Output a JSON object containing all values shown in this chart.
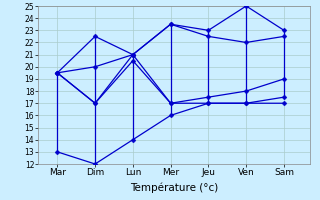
{
  "title": "",
  "xlabel": "Température (°c)",
  "background_color": "#cceeff",
  "grid_color": "#aacccc",
  "line_color": "#0000cc",
  "days": [
    "Mar",
    "Dim",
    "Lun",
    "Mer",
    "Jeu",
    "Ven",
    "Sam"
  ],
  "ylim": [
    12,
    25
  ],
  "yticks": [
    12,
    13,
    14,
    15,
    16,
    17,
    18,
    19,
    20,
    21,
    22,
    23,
    24,
    25
  ],
  "day_positions": [
    0,
    1,
    2,
    3,
    4,
    5,
    6
  ],
  "mins": [
    13,
    12,
    14,
    16,
    17,
    17,
    17.5
  ],
  "maxs": [
    19.5,
    22.5,
    21,
    23.5,
    23,
    25,
    23
  ],
  "mid1": [
    19.5,
    17,
    20.5,
    17,
    17,
    17,
    17
  ],
  "mid2": [
    19.5,
    20,
    21,
    17,
    17.5,
    18,
    19
  ],
  "mid3": [
    19.5,
    17,
    21,
    23.5,
    22.5,
    22,
    22.5
  ]
}
